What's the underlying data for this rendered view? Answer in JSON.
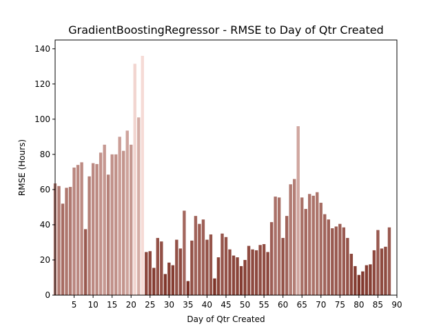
{
  "chart_data": {
    "type": "bar",
    "title": "GradientBoostingRegressor - RMSE to Day of Qtr Created",
    "xlabel": "Day of Qtr Created",
    "ylabel": "RMSE (Hours)",
    "xlim": [
      0,
      90
    ],
    "ylim": [
      0,
      145
    ],
    "xticks": [
      5,
      10,
      15,
      20,
      25,
      30,
      35,
      40,
      45,
      50,
      55,
      60,
      65,
      70,
      75,
      80,
      85,
      90
    ],
    "yticks": [
      0,
      20,
      40,
      60,
      80,
      100,
      120,
      140
    ],
    "grid": false,
    "legend": "none",
    "color_scale": {
      "low": "#7d3227",
      "high": "#f6dbd6"
    },
    "x": [
      0,
      1,
      2,
      3,
      4,
      5,
      6,
      7,
      8,
      9,
      10,
      11,
      12,
      13,
      14,
      15,
      16,
      17,
      18,
      19,
      20,
      21,
      22,
      23,
      24,
      25,
      26,
      27,
      28,
      29,
      30,
      31,
      32,
      33,
      34,
      35,
      36,
      37,
      38,
      39,
      40,
      41,
      42,
      43,
      44,
      45,
      46,
      47,
      48,
      49,
      50,
      51,
      52,
      53,
      54,
      55,
      56,
      57,
      58,
      59,
      60,
      61,
      62,
      63,
      64,
      65,
      66,
      67,
      68,
      69,
      70,
      71,
      72,
      73,
      74,
      75,
      76,
      77,
      78,
      79,
      80,
      81,
      82,
      83,
      84,
      85,
      86,
      87,
      88
    ],
    "values": [
      63.5,
      62,
      52,
      61,
      61.5,
      72.5,
      74,
      75.5,
      37.5,
      67.5,
      75,
      74.5,
      81,
      85.5,
      68.5,
      80,
      80,
      90,
      82,
      93.5,
      85.5,
      131.5,
      101,
      136,
      24.5,
      25,
      15.5,
      32.5,
      30.5,
      12,
      18.5,
      17,
      31.5,
      26.5,
      48,
      8,
      31,
      45,
      40.5,
      43,
      31.5,
      34.5,
      9.5,
      21.5,
      35,
      33,
      26,
      22.5,
      21.5,
      16.5,
      20,
      28,
      26,
      25.5,
      28.5,
      29,
      24.5,
      41.5,
      56,
      55.5,
      32.5,
      45,
      63,
      66,
      96,
      55.5,
      49,
      57.5,
      56.5,
      58.5,
      52.5,
      46,
      43,
      38,
      39,
      40.5,
      38.5,
      32.5,
      23.5,
      16.5,
      11.5,
      13.5,
      17,
      17.5,
      25.5,
      37,
      26.5,
      27.5,
      38.5
    ]
  }
}
